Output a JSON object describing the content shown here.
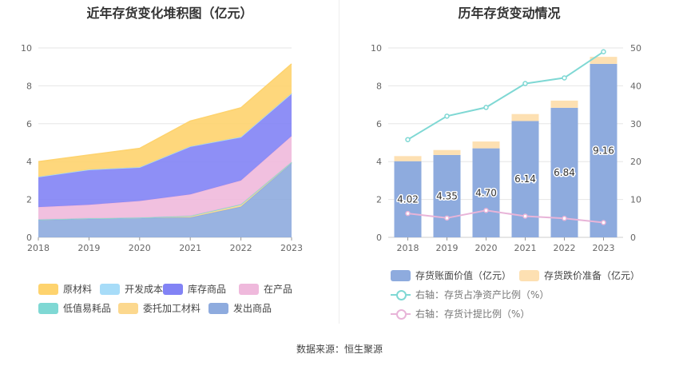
{
  "chart_data": [
    {
      "type": "area",
      "stacked": true,
      "title": "近年存货变化堆积图（亿元）",
      "x": [
        "2018",
        "2019",
        "2020",
        "2021",
        "2022",
        "2023"
      ],
      "ylim": [
        0,
        10
      ],
      "yticks": [
        "0",
        "2",
        "4",
        "6",
        "8",
        "10"
      ],
      "grid": true,
      "legend_position": "bottom",
      "series": [
        {
          "name": "发出商品",
          "color": "#8eabde",
          "values": [
            0.92,
            0.98,
            1.02,
            1.05,
            1.62,
            3.92
          ]
        },
        {
          "name": "委托加工材料",
          "color": "#fcd88e",
          "values": [
            0.02,
            0.02,
            0.02,
            0.08,
            0.12,
            0.05
          ]
        },
        {
          "name": "低值易耗品",
          "color": "#7fd8d4",
          "values": [
            0.0,
            0.0,
            0.0,
            0.0,
            0.0,
            0.0
          ]
        },
        {
          "name": "在产品",
          "color": "#efb9dc",
          "values": [
            0.66,
            0.72,
            0.88,
            1.14,
            1.26,
            1.38
          ]
        },
        {
          "name": "库存商品",
          "color": "#8283f5",
          "values": [
            1.6,
            1.86,
            1.78,
            2.53,
            2.3,
            2.25
          ]
        },
        {
          "name": "开发成本",
          "color": "#a7dcf8",
          "values": [
            0.0,
            0.0,
            0.0,
            0.0,
            0.0,
            0.0
          ]
        },
        {
          "name": "原材料",
          "color": "#fed36e",
          "values": [
            0.8,
            0.77,
            1.0,
            1.34,
            1.54,
            1.56
          ]
        }
      ],
      "legend_order": [
        "原材料",
        "开发成本",
        "库存商品",
        "在产品",
        "低值易耗品",
        "委托加工材料",
        "发出商品"
      ]
    },
    {
      "type": "bar",
      "title": "历年存货变动情况",
      "categories": [
        "2018",
        "2019",
        "2020",
        "2021",
        "2022",
        "2023"
      ],
      "ylim": [
        0,
        10
      ],
      "yticks": [
        "0",
        "2",
        "4",
        "6",
        "8",
        "10"
      ],
      "y2lim": [
        0,
        50
      ],
      "y2ticks": [
        "0",
        "10",
        "20",
        "30",
        "40",
        "50"
      ],
      "legend_position": "bottom",
      "bars": [
        {
          "name": "存货账面价值（亿元）",
          "color": "#8eabde",
          "values": [
            4.02,
            4.35,
            4.7,
            6.14,
            6.84,
            9.16
          ],
          "labels": [
            "4.02",
            "4.35",
            "4.70",
            "6.14",
            "6.84",
            "9.16"
          ]
        },
        {
          "name": "存货跌价准备（亿元）",
          "color": "#fde0b2",
          "values": [
            0.27,
            0.26,
            0.36,
            0.37,
            0.38,
            0.37
          ]
        }
      ],
      "lines": [
        {
          "name": "右轴：存货占净资产比例（%）",
          "color": "#7fd8d4",
          "axis": "right",
          "values": [
            25.8,
            32.0,
            34.3,
            40.6,
            42.1,
            49.0
          ]
        },
        {
          "name": "右轴：存货计提比例（%）",
          "color": "#e8b4d8",
          "axis": "right",
          "values": [
            6.3,
            5.1,
            7.1,
            5.6,
            5.0,
            3.9
          ]
        }
      ]
    }
  ],
  "source": "数据来源：恒生聚源"
}
